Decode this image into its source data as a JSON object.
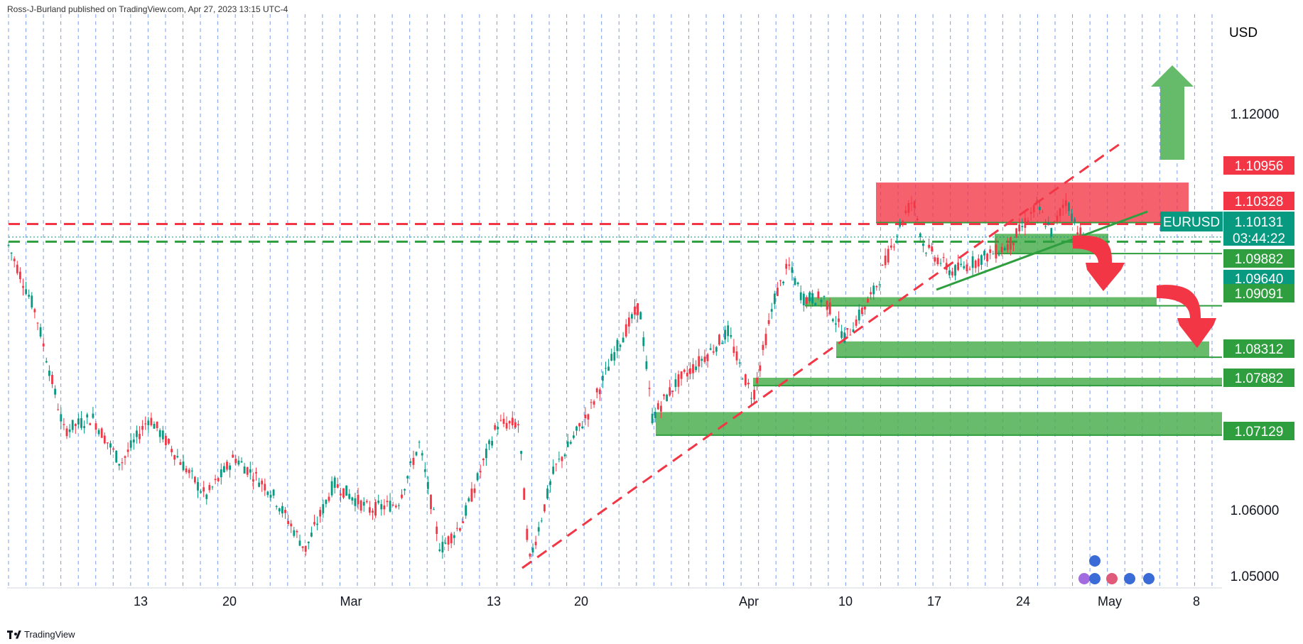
{
  "header": {
    "publisher_text": "Ross-J-Burland published on TradingView.com, Apr 27, 2023 13:15 UTC-4"
  },
  "footer": {
    "brand": "TradingView"
  },
  "chart_data": {
    "type": "candlestick",
    "symbol": "EURUSD",
    "currency": "USD",
    "yaxis": {
      "ticks": [
        "1.12000",
        "1.06000",
        "1.05000"
      ],
      "ylim": [
        1.05,
        1.125
      ]
    },
    "xaxis": {
      "ticks": [
        "13",
        "20",
        "Mar",
        "13",
        "20",
        "Apr",
        "10",
        "17",
        "24",
        "May",
        "8"
      ]
    },
    "last_price": "1.10131",
    "countdown": "03:44:22",
    "price_labels": [
      {
        "value": "1.10956",
        "color": "#f23645"
      },
      {
        "value": "1.10328",
        "color": "#f23645"
      },
      {
        "value": "1.09882",
        "color": "#089981"
      },
      {
        "value": "1.09640",
        "color": "#089981"
      },
      {
        "value": "1.09091",
        "color": "#089981"
      },
      {
        "value": "1.08312",
        "color": "#089981"
      },
      {
        "value": "1.07882",
        "color": "#089981"
      },
      {
        "value": "1.07129",
        "color": "#089981"
      }
    ],
    "zones": [
      {
        "kind": "resistance",
        "low": 1.1035,
        "high": 1.10956,
        "color": "#f23645"
      },
      {
        "kind": "support",
        "low": 1.0988,
        "high": 1.1018,
        "color": "#4caf50"
      },
      {
        "kind": "support",
        "low": 1.0909,
        "high": 1.0922,
        "color": "#4caf50"
      },
      {
        "kind": "support",
        "low": 1.0831,
        "high": 1.0855,
        "color": "#4caf50"
      },
      {
        "kind": "support",
        "low": 1.0788,
        "high": 1.08,
        "color": "#4caf50"
      },
      {
        "kind": "support",
        "low": 1.0713,
        "high": 1.0748,
        "color": "#4caf50"
      }
    ],
    "levels": [
      {
        "value": 1.10328,
        "style": "dashed",
        "color": "#f23645"
      },
      {
        "value": 1.1006,
        "style": "dashed",
        "color": "#2e9e3e"
      }
    ],
    "colors": {
      "up": "#089981",
      "down": "#f23645",
      "grid": "#5b86e5",
      "support": "#4caf50",
      "resistance": "#f23645"
    }
  }
}
